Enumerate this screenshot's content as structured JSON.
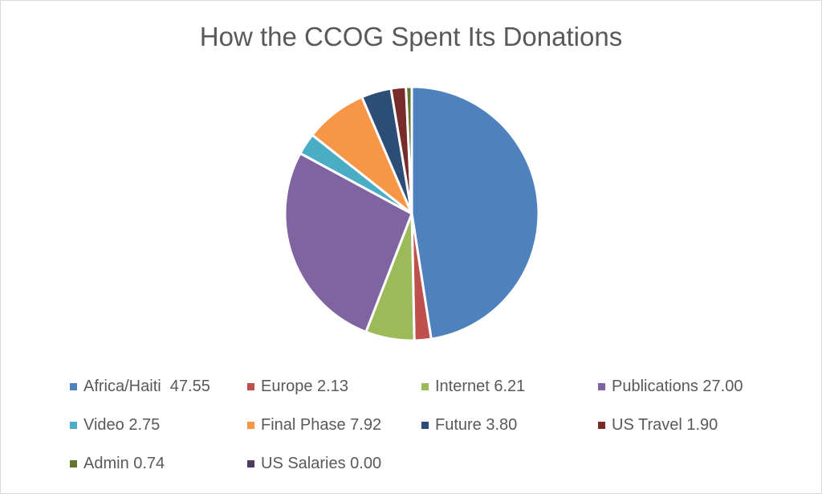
{
  "chart_data": {
    "type": "pie",
    "title": "How the CCOG Spent Its Donations",
    "categories": [
      "Africa/Haiti",
      "Europe",
      "Internet",
      "Publications",
      "Video",
      "Final Phase",
      "Future",
      "US Travel",
      "Admin",
      "US Salaries"
    ],
    "values": [
      47.55,
      2.13,
      6.21,
      27.0,
      2.75,
      7.92,
      3.8,
      1.9,
      0.74,
      0.0
    ],
    "legend_labels": [
      "Africa/Haiti  47.55",
      "Europe 2.13",
      "Internet 6.21",
      "Publications 27.00",
      "Video 2.75",
      "Final Phase 7.92",
      "Future 3.80",
      "US Travel 1.90",
      "Admin 0.74",
      "US Salaries 0.00"
    ],
    "colors": [
      "#4F81BD",
      "#C0504D",
      "#9BBB59",
      "#8064A2",
      "#4BACC6",
      "#F79646",
      "#2C4D75",
      "#772C2A",
      "#5F7530",
      "#4D3B62"
    ],
    "legend_position": "bottom"
  }
}
